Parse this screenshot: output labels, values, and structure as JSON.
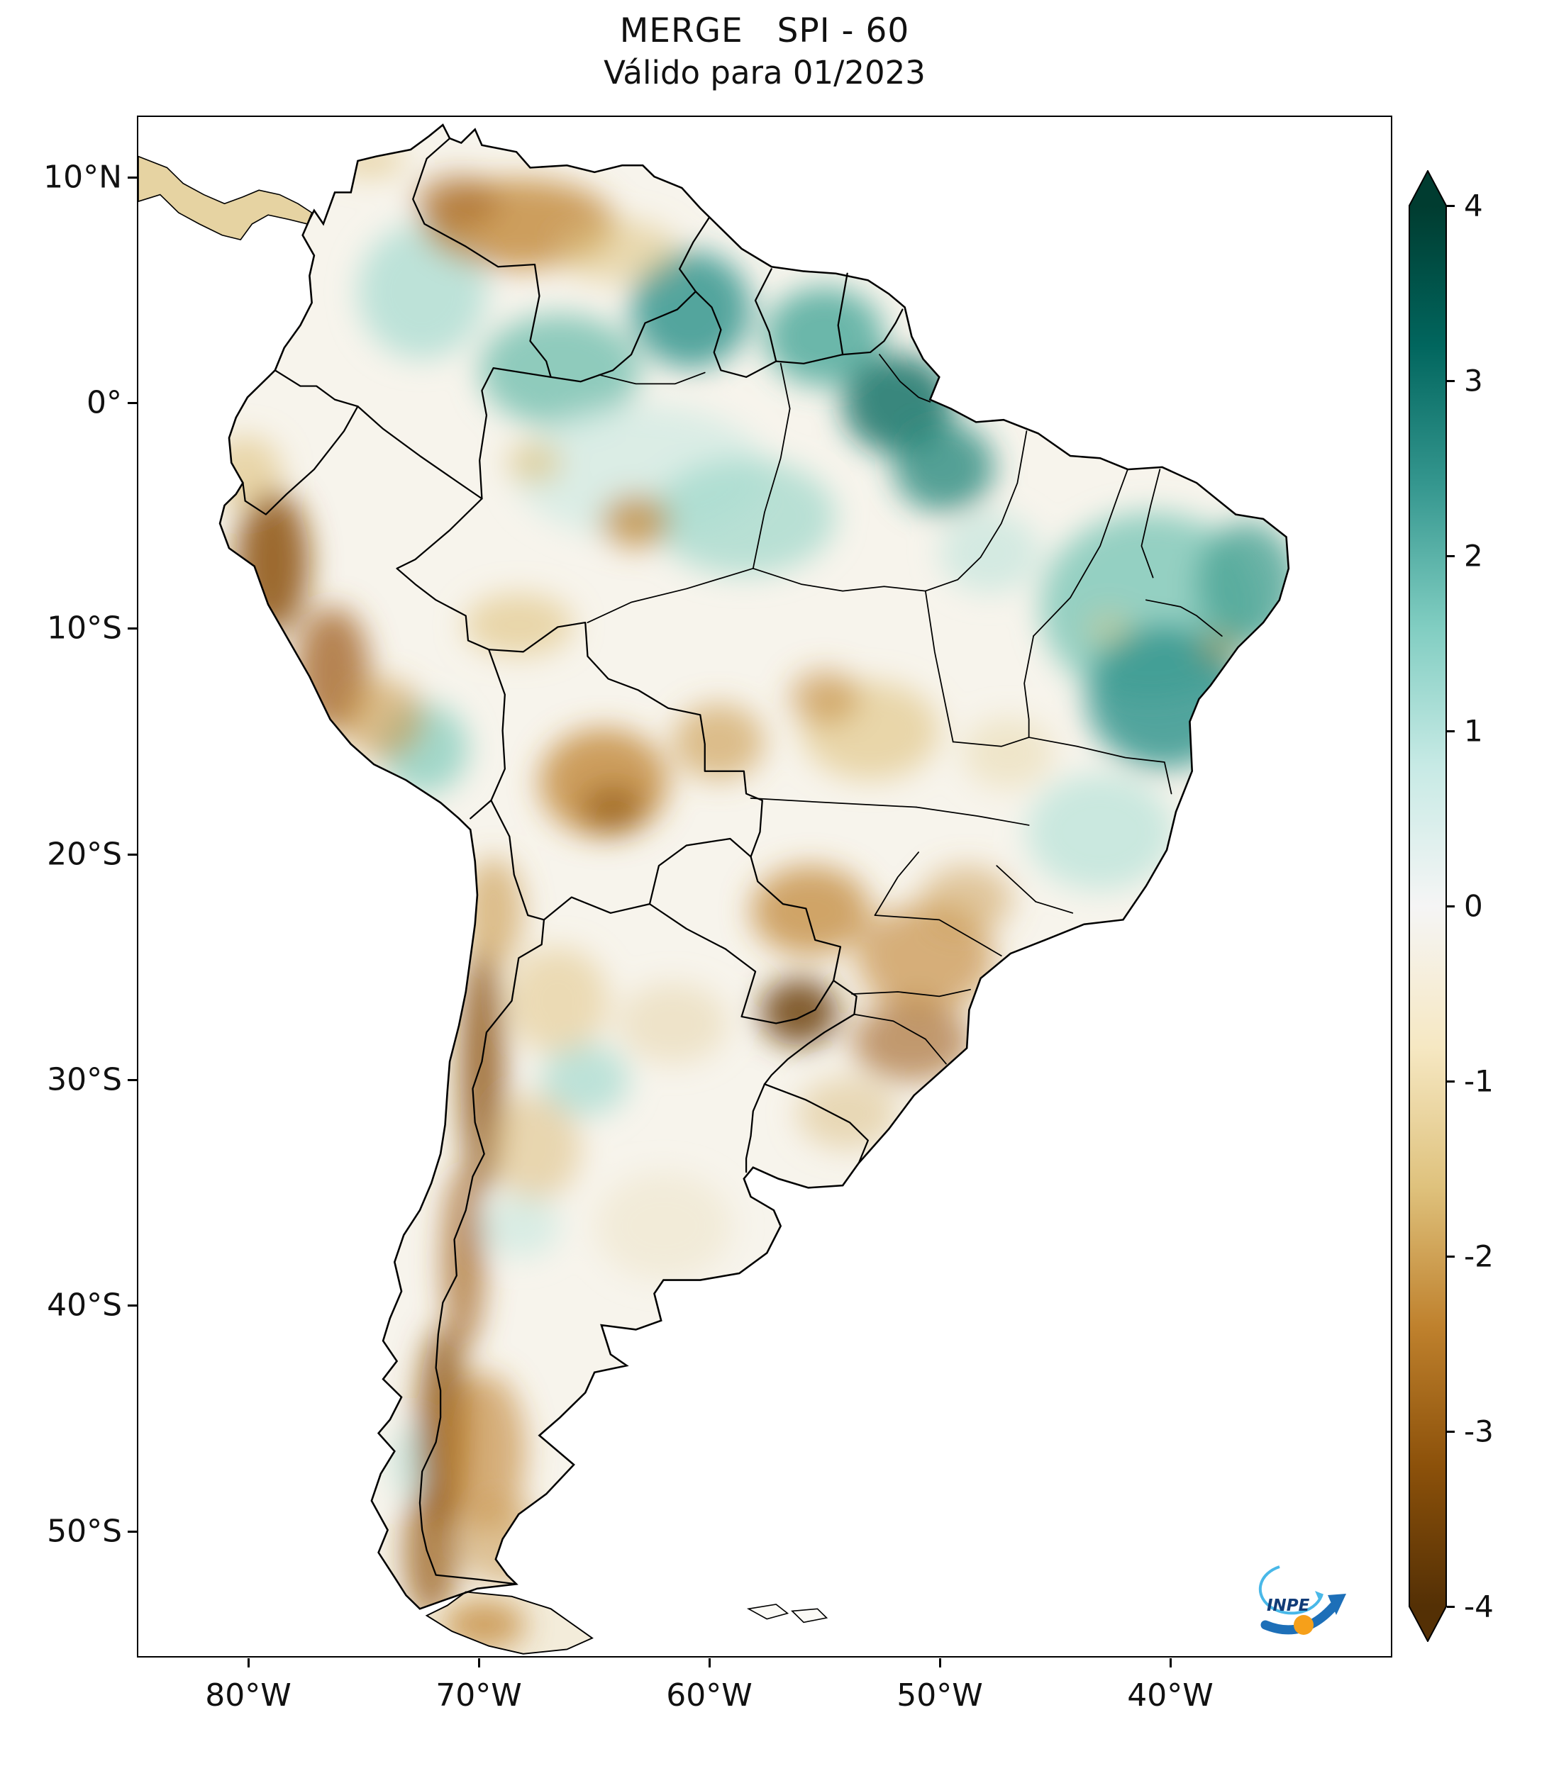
{
  "title": "MERGE   SPI - 60",
  "subtitle": "Válido para 01/2023",
  "axes": {
    "y_ticks": [
      "10°N",
      "0°",
      "10°S",
      "20°S",
      "30°S",
      "40°S",
      "50°S"
    ],
    "x_ticks": [
      "80°W",
      "70°W",
      "60°W",
      "50°W",
      "40°W"
    ]
  },
  "colorbar": {
    "ticks": [
      "4",
      "3",
      "2",
      "1",
      "0",
      "-1",
      "-2",
      "-3",
      "-4"
    ],
    "min": -4,
    "max": 4,
    "colors": [
      "#543005",
      "#8c510a",
      "#bf812d",
      "#dfc27d",
      "#f6e8c3",
      "#f5f5f5",
      "#c7eae5",
      "#80cdc1",
      "#35978f",
      "#01665e",
      "#003c30"
    ]
  },
  "logo": {
    "text": "INPE"
  },
  "map_data": {
    "type": "heatmap",
    "variable": "SPI-60 (Standardized Precipitation Index, 60 months)",
    "valid_for": "01/2023",
    "region_shown": "South America",
    "legend_range": [
      -4,
      4
    ],
    "regions": [
      {
        "area": "Northern Amazon / Roraima / Guyanas",
        "spi": 2
      },
      {
        "area": "Amapá and Amazon river mouth",
        "spi": 2.5
      },
      {
        "area": "Northeast Brazil (Bahia, Pernambuco, Piauí)",
        "spi": 2
      },
      {
        "area": "Colombian Amazon",
        "spi": 1
      },
      {
        "area": "Central Amazon basin",
        "spi": 0.5
      },
      {
        "area": "Minas Gerais / Espírito Santo",
        "spi": 1
      },
      {
        "area": "Peru Altiplano (Cusco/Puno)",
        "spi": 1
      },
      {
        "area": "Córdoba region, Argentina",
        "spi": 1
      },
      {
        "area": "Northern Venezuela",
        "spi": -1.5
      },
      {
        "area": "Peruvian coast and Andes",
        "spi": -2.5
      },
      {
        "area": "Bolivian lowlands",
        "spi": -2
      },
      {
        "area": "Central Brazil (Mato Grosso / Goiás)",
        "spi": -1
      },
      {
        "area": "Southern Brazil / Paraguay / Misiones",
        "spi": -2.5
      },
      {
        "area": "Central Chile Andes cordillera",
        "spi": -3
      },
      {
        "area": "Patagonia",
        "spi": -2
      },
      {
        "area": "Pampas / Buenos Aires",
        "spi": -0.5
      }
    ]
  }
}
